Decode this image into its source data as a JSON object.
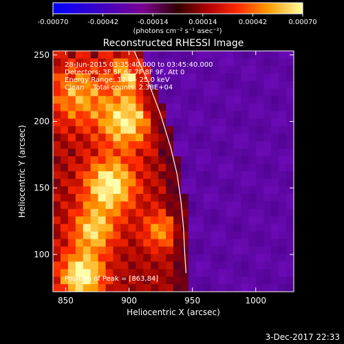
{
  "chart_data": {
    "type": "heatmap",
    "title": "Reconstructed RHESSI Image",
    "xlabel": "Heliocentric X (arcsec)",
    "ylabel": "Heliocentric Y (arcsec)",
    "xlim": [
      840,
      1030
    ],
    "ylim": [
      72,
      253
    ],
    "x_ticks": [
      "850",
      "900",
      "950",
      "1000"
    ],
    "y_ticks": [
      "100",
      "150",
      "200",
      "250"
    ],
    "x_tick_values": [
      850,
      900,
      950,
      1000
    ],
    "y_tick_values": [
      100,
      150,
      200,
      250
    ],
    "colorbar": {
      "min": -0.0007,
      "max": 0.0007,
      "tick_labels": [
        "-0.00070",
        "-0.00042",
        "-0.00014",
        "0.00014",
        "0.00042",
        "0.00070"
      ],
      "tick_values": [
        -0.0007,
        -0.00042,
        -0.00014,
        0.00014,
        0.00042,
        0.0007
      ],
      "units_label": "(photons cm⁻² s⁻¹ asec⁻²)"
    },
    "annotations": [
      "28-Jun-2015 03:35:40.000 to 03:45:40.000",
      "Detectors: 3F 5F 6F 7F 8F 9F, Att 0",
      "Energy Range: 12.0 - 25.0 keV",
      "Clean    Total counts: 2.38E+04"
    ],
    "peak_label": "Position of Peak = [863,84]",
    "peak": [
      863,
      84
    ],
    "limb": [
      [
        904,
        253
      ],
      [
        915,
        230
      ],
      [
        925,
        205
      ],
      [
        933,
        180
      ],
      [
        938,
        160
      ],
      [
        941,
        140
      ],
      [
        943,
        120
      ],
      [
        944,
        100
      ],
      [
        945,
        86
      ]
    ],
    "grid": false
  },
  "footer": {
    "date": "3-Dec-2017 22:33"
  }
}
